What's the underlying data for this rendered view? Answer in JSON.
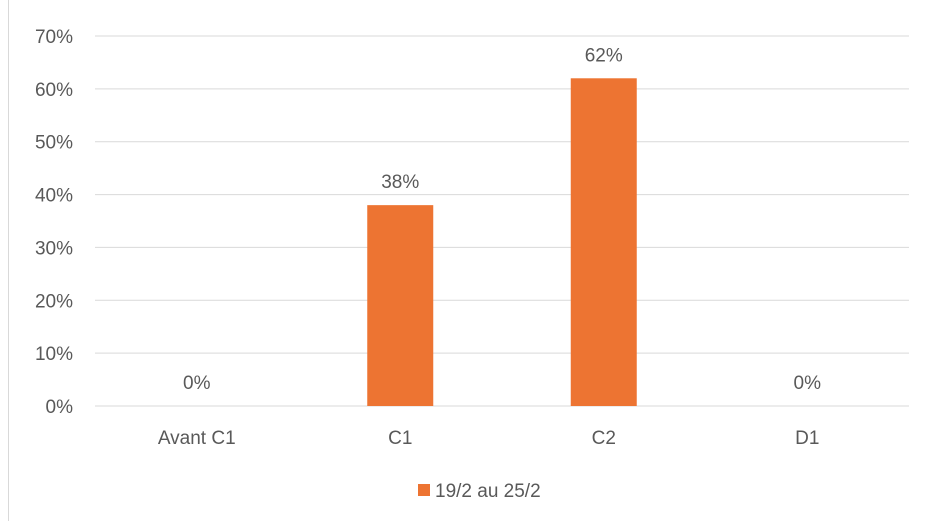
{
  "chart_data": {
    "type": "bar",
    "categories": [
      "Avant C1",
      "C1",
      "C2",
      "D1"
    ],
    "series": [
      {
        "name": "19/2 au 25/2",
        "values": [
          0,
          38,
          62,
          0
        ],
        "labels": [
          "0%",
          "38%",
          "62%",
          "0%"
        ],
        "color": "#ed7432"
      }
    ],
    "ylim": [
      0,
      70
    ],
    "yticks": [
      0,
      10,
      20,
      30,
      40,
      50,
      60,
      70
    ],
    "ytick_labels": [
      "0%",
      "10%",
      "20%",
      "30%",
      "40%",
      "50%",
      "60%",
      "70%"
    ],
    "grid": true,
    "grid_color": "#d9d9d9",
    "legend_position": "bottom",
    "title": "",
    "xlabel": "",
    "ylabel": ""
  }
}
